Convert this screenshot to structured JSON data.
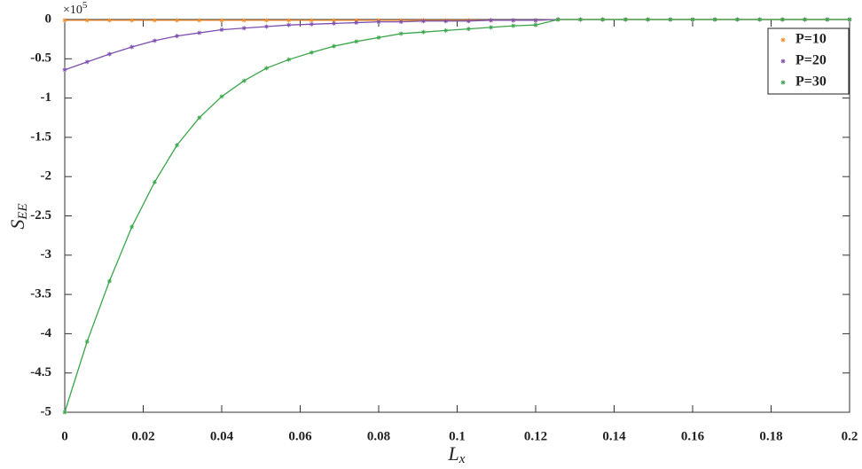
{
  "chart_data": {
    "type": "line",
    "xlabel": {
      "base": "L",
      "sub": "x"
    },
    "ylabel": {
      "base": "S",
      "sub": "EE"
    },
    "y_multiplier": {
      "base": "×10",
      "exponent": "5"
    },
    "x": [
      0,
      0.0057,
      0.0114,
      0.0171,
      0.0229,
      0.0286,
      0.0343,
      0.04,
      0.0457,
      0.0514,
      0.0571,
      0.0629,
      0.0686,
      0.0743,
      0.08,
      0.0857,
      0.0914,
      0.0971,
      0.1029,
      0.1086,
      0.1143,
      0.12,
      0.1257,
      0.1314,
      0.1371,
      0.1429,
      0.1486,
      0.1543,
      0.16,
      0.1657,
      0.1714,
      0.1771,
      0.1829,
      0.1886,
      0.1943,
      0.2
    ],
    "series": [
      {
        "name": "P=10",
        "color": "#f28e2b",
        "values": [
          -0.01,
          -0.01,
          -0.01,
          -0.01,
          -0.01,
          -0.01,
          -0.01,
          -0.01,
          -0.01,
          -0.01,
          -0.01,
          -0.01,
          -0.01,
          -0.01,
          -0.01,
          -0.01,
          -0.01,
          -0.01,
          -0.01,
          -0.01,
          -0.01,
          -0.01,
          0,
          0,
          0,
          0,
          0,
          0,
          0,
          0,
          0,
          0,
          0,
          0,
          0,
          0
        ]
      },
      {
        "name": "P=20",
        "color": "#7e4fb0",
        "values": [
          -0.64,
          -0.54,
          -0.44,
          -0.35,
          -0.27,
          -0.21,
          -0.17,
          -0.13,
          -0.11,
          -0.09,
          -0.07,
          -0.06,
          -0.05,
          -0.04,
          -0.03,
          -0.03,
          -0.02,
          -0.02,
          -0.02,
          -0.01,
          -0.01,
          -0.01,
          0,
          0,
          0,
          0,
          0,
          0,
          0,
          0,
          0,
          0,
          0,
          0,
          0,
          0
        ]
      },
      {
        "name": "P=30",
        "color": "#3aa64a",
        "values": [
          -5.0,
          -4.1,
          -3.33,
          -2.64,
          -2.07,
          -1.6,
          -1.25,
          -0.98,
          -0.78,
          -0.62,
          -0.51,
          -0.42,
          -0.34,
          -0.28,
          -0.23,
          -0.18,
          -0.16,
          -0.14,
          -0.12,
          -0.1,
          -0.08,
          -0.07,
          0,
          0,
          0,
          0,
          0,
          0,
          0,
          0,
          0,
          0,
          0,
          0,
          0,
          0
        ]
      }
    ],
    "xlim": [
      0,
      0.2
    ],
    "xticks": [
      0,
      0.02,
      0.04,
      0.06,
      0.08,
      0.1,
      0.12,
      0.14,
      0.16,
      0.18,
      0.2
    ],
    "ylim": [
      -5,
      0
    ],
    "yticks": [
      -5,
      -4.5,
      -4,
      -3.5,
      -3,
      -2.5,
      -2,
      -1.5,
      -1,
      -0.5,
      0
    ],
    "grid": false,
    "legend": "upper right"
  }
}
